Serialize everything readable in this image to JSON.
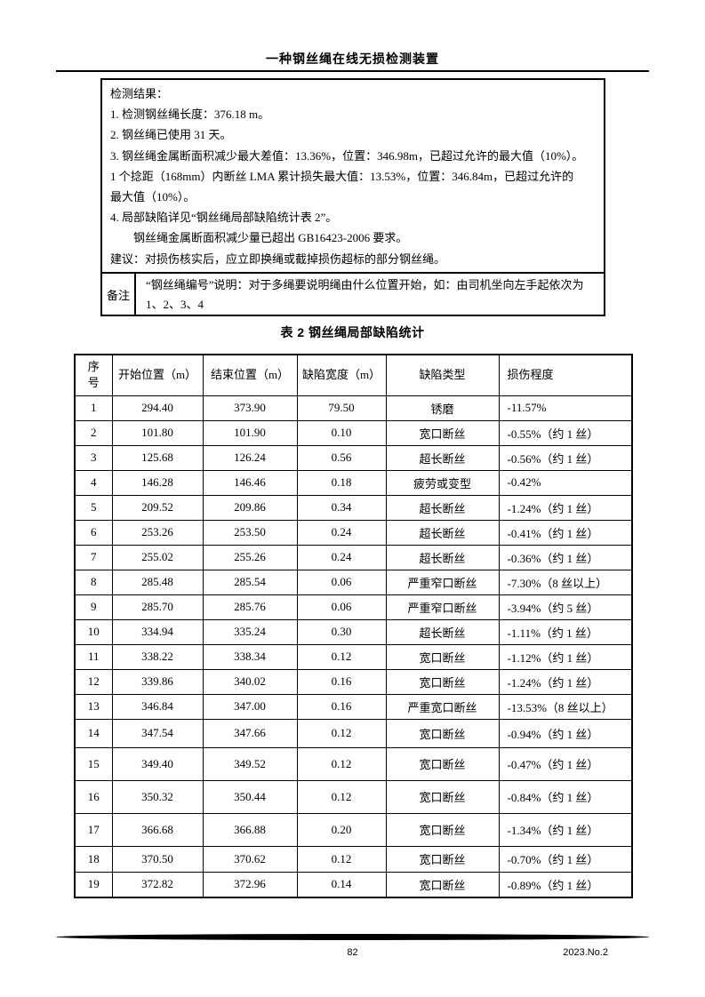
{
  "page": {
    "header_title": "一种钢丝绳在线无损检测装置",
    "footer": {
      "page_number": "82",
      "issue": "2023.No.2"
    }
  },
  "result_box": {
    "lines": [
      "检测结果：",
      "1. 检测钢丝绳长度：376.18 m。",
      "2. 钢丝绳已使用 31 天。",
      "3. 钢丝绳金属断面积减少最大差值：13.36%，位置：346.98m，已超过允许的最大值（10%）。",
      "1 个捻距（168mm）内断丝 LMA 累计损失最大值：13.53%，位置：346.84m，已超过允许的",
      "最大值（10%）。",
      "4. 局部缺陷详见“钢丝绳局部缺陷统计表 2”。",
      "钢丝绳金属断面积减少量已超出 GB16423-2006 要求。",
      "建议：对损伤核实后，应立即换绳或截掉损伤超标的部分钢丝绳。"
    ],
    "remark_label": "备注",
    "remark_text": "“钢丝绳编号”说明：对于多绳要说明绳由什么位置开始，如：由司机坐向左手起依次为 1、2、3、4"
  },
  "table": {
    "title": "表 2 钢丝绳局部缺陷统计",
    "columns": [
      "序号",
      "开始位置（m）",
      "结束位置（m）",
      "缺陷宽度（m）",
      "缺陷类型",
      "损伤程度"
    ],
    "rows": [
      {
        "no": "1",
        "start": "294.40",
        "end": "373.90",
        "width": "79.50",
        "type": "锈磨",
        "damage": "-11.57%"
      },
      {
        "no": "2",
        "start": "101.80",
        "end": "101.90",
        "width": "0.10",
        "type": "宽口断丝",
        "damage": "-0.55%（约 1 丝）"
      },
      {
        "no": "3",
        "start": "125.68",
        "end": "126.24",
        "width": "0.56",
        "type": "超长断丝",
        "damage": "-0.56%（约 1 丝）"
      },
      {
        "no": "4",
        "start": "146.28",
        "end": "146.46",
        "width": "0.18",
        "type": "疲劳或变型",
        "damage": "-0.42%"
      },
      {
        "no": "5",
        "start": "209.52",
        "end": "209.86",
        "width": "0.34",
        "type": "超长断丝",
        "damage": "-1.24%（约 1 丝）"
      },
      {
        "no": "6",
        "start": "253.26",
        "end": "253.50",
        "width": "0.24",
        "type": "超长断丝",
        "damage": "-0.41%（约 1 丝）"
      },
      {
        "no": "7",
        "start": "255.02",
        "end": "255.26",
        "width": "0.24",
        "type": "超长断丝",
        "damage": "-0.36%（约 1 丝）"
      },
      {
        "no": "8",
        "start": "285.48",
        "end": "285.54",
        "width": "0.06",
        "type": "严重窄口断丝",
        "damage": "-7.30%（8 丝以上）"
      },
      {
        "no": "9",
        "start": "285.70",
        "end": "285.76",
        "width": "0.06",
        "type": "严重窄口断丝",
        "damage": "-3.94%（约 5 丝）"
      },
      {
        "no": "10",
        "start": "334.94",
        "end": "335.24",
        "width": "0.30",
        "type": "超长断丝",
        "damage": "-1.11%（约 1 丝）"
      },
      {
        "no": "11",
        "start": "338.22",
        "end": "338.34",
        "width": "0.12",
        "type": "宽口断丝",
        "damage": "-1.12%（约 1 丝）"
      },
      {
        "no": "12",
        "start": "339.86",
        "end": "340.02",
        "width": "0.16",
        "type": "宽口断丝",
        "damage": "-1.24%（约 1 丝）"
      },
      {
        "no": "13",
        "start": "346.84",
        "end": "347.00",
        "width": "0.16",
        "type": "严重宽口断丝",
        "damage": "-13.53%（8 丝以上）"
      },
      {
        "no": "14",
        "start": "347.54",
        "end": "347.66",
        "width": "0.12",
        "type": "宽口断丝",
        "damage": "-0.94%（约 1 丝）"
      },
      {
        "no": "15",
        "start": "349.40",
        "end": "349.52",
        "width": "0.12",
        "type": "宽口断丝",
        "damage": "-0.47%（约 1 丝）"
      },
      {
        "no": "16",
        "start": "350.32",
        "end": "350.44",
        "width": "0.12",
        "type": "宽口断丝",
        "damage": "-0.84%（约 1 丝）"
      },
      {
        "no": "17",
        "start": "366.68",
        "end": "366.88",
        "width": "0.20",
        "type": "宽口断丝",
        "damage": "-1.34%（约 1 丝）"
      },
      {
        "no": "18",
        "start": "370.50",
        "end": "370.62",
        "width": "0.12",
        "type": "宽口断丝",
        "damage": "-0.70%（约 1 丝）"
      },
      {
        "no": "19",
        "start": "372.82",
        "end": "372.96",
        "width": "0.14",
        "type": "宽口断丝",
        "damage": "-0.89%（约 1 丝）"
      }
    ]
  },
  "colors": {
    "background": "#ffffff",
    "text": "#000000",
    "border": "#000000"
  }
}
